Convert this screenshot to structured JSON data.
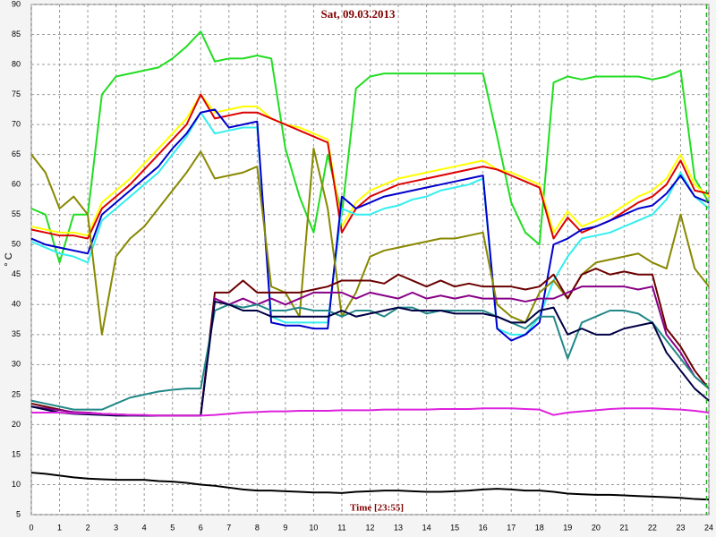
{
  "chart_data": {
    "type": "line",
    "title": "Sat, 09.03.2013",
    "x_label": "Time [23:55]",
    "y_label": "° C",
    "x": [
      0,
      0.5,
      1,
      1.5,
      2,
      2.5,
      3,
      3.5,
      4,
      4.5,
      5,
      5.5,
      6,
      6.5,
      7,
      7.5,
      8,
      8.5,
      9,
      9.5,
      10,
      10.5,
      11,
      11.5,
      12,
      12.5,
      13,
      13.5,
      14,
      14.5,
      15,
      15.5,
      16,
      16.5,
      17,
      17.5,
      18,
      18.5,
      19,
      19.5,
      20,
      20.5,
      21,
      21.5,
      22,
      22.5,
      23,
      23.5,
      24
    ],
    "xlim": [
      0,
      24
    ],
    "xticks": [
      0,
      1,
      2,
      3,
      4,
      5,
      6,
      7,
      8,
      9,
      10,
      11,
      12,
      13,
      14,
      15,
      16,
      17,
      18,
      19,
      20,
      21,
      22,
      23,
      24
    ],
    "ylim": [
      5,
      90
    ],
    "yticks": [
      5,
      10,
      15,
      20,
      25,
      30,
      35,
      40,
      45,
      50,
      55,
      60,
      65,
      70,
      75,
      80,
      85,
      90
    ],
    "grid": true,
    "time_cursor": 23.92,
    "time_cursor_color": "#22aa22",
    "series": [
      {
        "color": "#22dd22",
        "values": [
          56,
          55,
          47,
          55,
          55,
          75,
          78,
          78.5,
          79,
          79.5,
          81,
          83,
          85.5,
          80.5,
          81,
          81,
          81.5,
          81,
          66,
          58,
          52,
          65,
          55,
          76,
          78,
          78.5,
          78.5,
          78.5,
          78.5,
          78.5,
          78.5,
          78.5,
          78.5,
          68,
          57,
          52,
          50,
          77,
          78,
          77.5,
          78,
          78,
          78,
          78,
          77.5,
          78,
          79,
          61,
          57
        ]
      },
      {
        "color": "#ffff00",
        "values": [
          53,
          52.5,
          52,
          52,
          51.5,
          57,
          59,
          61,
          63.5,
          66,
          68.5,
          71,
          75,
          72,
          72.5,
          73,
          73,
          71,
          70,
          69.5,
          68.5,
          67.5,
          53,
          57,
          59,
          60,
          61,
          61.5,
          62,
          62.5,
          63,
          63.5,
          64,
          62.5,
          62,
          61,
          60,
          52,
          55.5,
          53,
          54,
          55,
          56.5,
          58,
          59,
          61,
          65,
          60,
          58
        ]
      },
      {
        "color": "#dd0000",
        "values": [
          52.5,
          52,
          51.5,
          51.5,
          51,
          56,
          58,
          60,
          62.5,
          65,
          67.5,
          70,
          75,
          71,
          71.5,
          72,
          72,
          71,
          70,
          69,
          68,
          67,
          52,
          56,
          58,
          59,
          60,
          60.5,
          61,
          61.5,
          62,
          62.5,
          63,
          62.5,
          61.5,
          60.5,
          59.5,
          51,
          54.5,
          52,
          53,
          54,
          55.5,
          57,
          58,
          60,
          64,
          59,
          58.5
        ]
      },
      {
        "color": "#33eeee",
        "values": [
          50.5,
          49.5,
          48.5,
          48,
          47,
          54,
          56,
          58,
          60,
          62,
          65,
          68,
          72,
          68.5,
          69,
          69.5,
          69.5,
          38,
          37,
          37,
          37,
          37,
          56,
          55,
          55,
          56,
          56.5,
          57.5,
          58,
          59,
          59.5,
          60,
          61,
          36,
          35,
          35,
          38,
          44,
          48,
          51,
          51.5,
          52,
          53,
          54,
          55,
          57.5,
          62,
          58,
          56
        ]
      },
      {
        "color": "#0000cc",
        "values": [
          51,
          50,
          49.5,
          49,
          48.5,
          55,
          57,
          59,
          61,
          63,
          66,
          68.5,
          72,
          72.5,
          69.5,
          70,
          70.5,
          37,
          36.5,
          36.5,
          36,
          36,
          58,
          56,
          57,
          58,
          58.5,
          59,
          59.5,
          60,
          60.5,
          61,
          61.5,
          36,
          34,
          35,
          37,
          50,
          51,
          52.5,
          53,
          54,
          55,
          56,
          56.5,
          58.5,
          61.5,
          58,
          57
        ]
      },
      {
        "color": "#888800",
        "values": [
          65,
          62,
          56,
          58,
          55,
          35,
          48,
          51,
          53,
          56,
          59,
          62,
          65.5,
          61,
          61.5,
          62,
          63,
          43,
          42,
          38,
          66,
          56,
          38,
          42,
          48,
          49,
          49.5,
          50,
          50.5,
          51,
          51,
          51.5,
          52,
          40,
          38,
          37,
          42,
          44,
          41,
          45,
          47,
          47.5,
          48,
          48.5,
          47,
          46,
          55,
          46,
          43
        ]
      },
      {
        "color": "#6b0000",
        "values": [
          23.5,
          23,
          22.5,
          22,
          22,
          21.8,
          21.7,
          21.6,
          21.5,
          21.5,
          21.5,
          21.5,
          21.5,
          42,
          42,
          44,
          42,
          42,
          42,
          42,
          42.5,
          43,
          44,
          44,
          44,
          43.5,
          45,
          44,
          43,
          44,
          43,
          43.5,
          43,
          43,
          43,
          42.5,
          43,
          45,
          41,
          45,
          46,
          45,
          45.5,
          45,
          45,
          36,
          33,
          29,
          26
        ]
      },
      {
        "color": "#880088",
        "values": [
          23,
          22.7,
          22.4,
          22.1,
          22,
          21.8,
          21.7,
          21.6,
          21.5,
          21.5,
          21.5,
          21.5,
          21.5,
          41,
          40,
          41,
          40,
          41,
          40,
          41,
          42,
          42,
          42,
          41,
          42,
          41.5,
          41,
          42,
          41,
          41.5,
          41,
          41.5,
          41,
          41,
          41,
          40.5,
          41,
          41,
          42,
          43,
          43,
          43,
          43,
          42.5,
          43,
          35,
          32,
          28,
          26
        ]
      },
      {
        "color": "#228888",
        "values": [
          24,
          23.5,
          23,
          22.5,
          22.5,
          22.5,
          23.5,
          24.5,
          25,
          25.5,
          25.8,
          26,
          26,
          39,
          40,
          39.5,
          40,
          39,
          39,
          39.5,
          39,
          39,
          38,
          39,
          39,
          38,
          39.5,
          39.5,
          38.5,
          39,
          39,
          39,
          39,
          38,
          37,
          36,
          38,
          38,
          31,
          37,
          38,
          39,
          39,
          38.5,
          37,
          34,
          31,
          28,
          26
        ]
      },
      {
        "color": "#000044",
        "values": [
          23,
          22.5,
          22,
          21.8,
          21.7,
          21.6,
          21.5,
          21.5,
          21.5,
          21.5,
          21.5,
          21.5,
          21.5,
          40.5,
          40,
          39,
          39,
          38,
          38,
          38,
          38,
          38,
          39,
          38,
          38.5,
          39,
          39.5,
          39,
          39,
          39,
          38.5,
          38.5,
          38.5,
          38,
          37,
          37,
          39,
          39.5,
          35,
          36,
          35,
          35,
          36,
          36.5,
          37,
          32,
          29,
          26,
          24
        ]
      },
      {
        "color": "#dd22dd",
        "values": [
          22,
          22,
          22,
          21.9,
          21.9,
          21.8,
          21.7,
          21.6,
          21.6,
          21.5,
          21.5,
          21.5,
          21.5,
          21.6,
          21.8,
          22,
          22.1,
          22.2,
          22.2,
          22.3,
          22.3,
          22.3,
          22.4,
          22.4,
          22.4,
          22.5,
          22.5,
          22.5,
          22.5,
          22.6,
          22.6,
          22.6,
          22.7,
          22.7,
          22.7,
          22.6,
          22.5,
          21.6,
          22,
          22.2,
          22.4,
          22.6,
          22.7,
          22.7,
          22.7,
          22.6,
          22.5,
          22.3,
          22
        ]
      },
      {
        "color": "#000000",
        "values": [
          12,
          11.8,
          11.5,
          11.2,
          11,
          10.9,
          10.8,
          10.8,
          10.8,
          10.6,
          10.5,
          10.3,
          10,
          9.8,
          9.5,
          9.2,
          9,
          9,
          8.9,
          8.8,
          8.7,
          8.7,
          8.6,
          8.8,
          8.9,
          9,
          9,
          8.9,
          8.8,
          8.8,
          8.9,
          9,
          9.2,
          9.3,
          9.2,
          9,
          9,
          8.8,
          8.5,
          8.4,
          8.3,
          8.3,
          8.2,
          8.1,
          8,
          7.9,
          7.8,
          7.6,
          7.5
        ]
      }
    ]
  }
}
